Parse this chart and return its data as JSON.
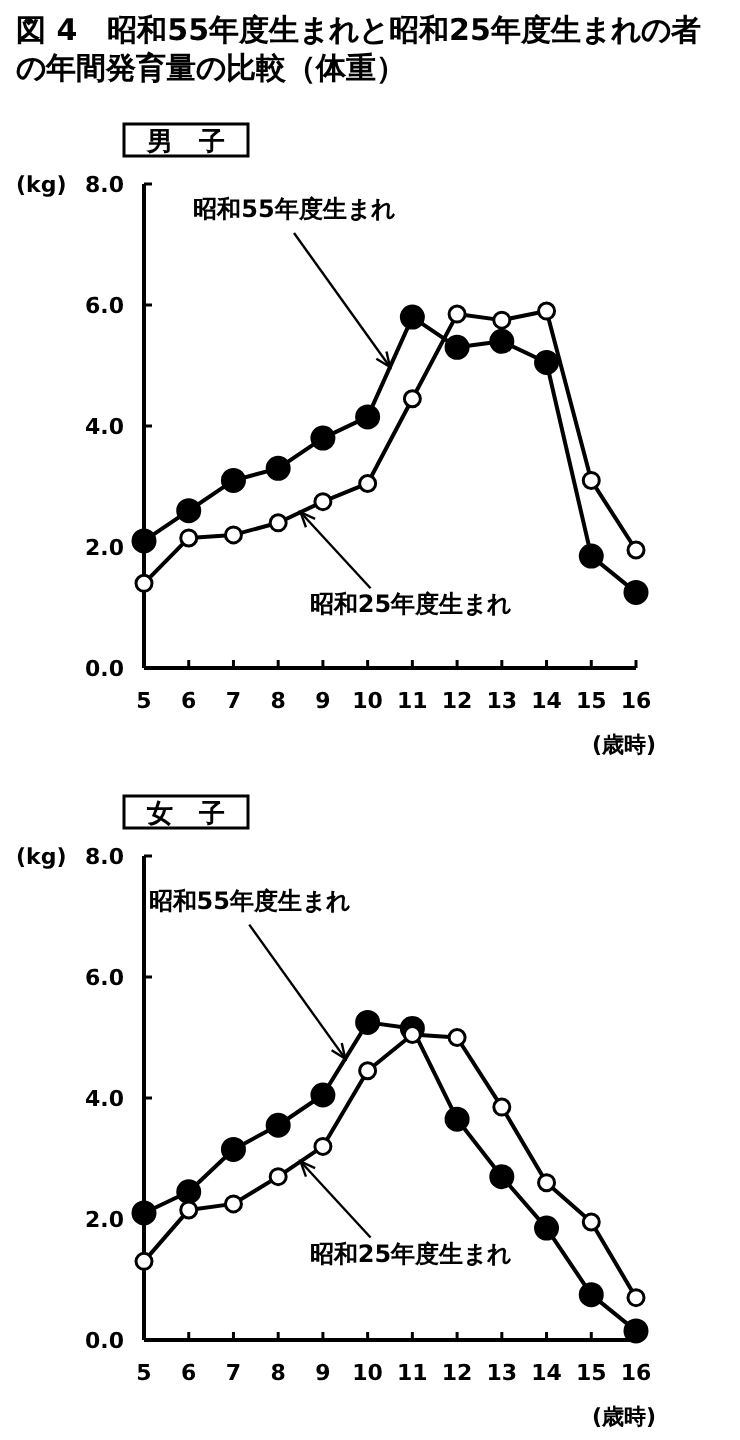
{
  "chart_data": [
    {
      "type": "line",
      "title": "図 4　昭和55年度生まれと昭和25年度生まれの者の年間発育量の比較（体重）",
      "subtitle": "男　子",
      "ylabel": "(kg)",
      "xlabel": "(歳時)",
      "x": [
        5,
        6,
        7,
        8,
        9,
        10,
        11,
        12,
        13,
        14,
        15,
        16
      ],
      "xlim": [
        5,
        16
      ],
      "xticks": [
        5,
        6,
        7,
        8,
        9,
        10,
        11,
        12,
        13,
        14,
        15,
        16
      ],
      "ylim": [
        0,
        8
      ],
      "yticks": [
        {
          "value": 0,
          "label": "0.0"
        },
        {
          "value": 2,
          "label": "2.0"
        },
        {
          "value": 4,
          "label": "4.0"
        },
        {
          "value": 6,
          "label": "6.0"
        },
        {
          "value": 8,
          "label": "8.0"
        }
      ],
      "grid": false,
      "marker": "circle",
      "line_style": "solid",
      "series": [
        {
          "name": "昭和55年度生まれ",
          "color": "#000000",
          "values": [
            2.1,
            2.6,
            3.1,
            3.3,
            3.8,
            4.15,
            5.8,
            5.3,
            5.4,
            5.05,
            1.85,
            1.25
          ]
        },
        {
          "name": "昭和25年度生まれ",
          "color": "#000000",
          "values": [
            1.4,
            2.15,
            2.2,
            2.4,
            2.75,
            3.05,
            4.45,
            5.85,
            5.75,
            5.9,
            3.1,
            1.95
          ]
        }
      ]
    },
    {
      "type": "line",
      "subtitle": "女　子",
      "ylabel": "(kg)",
      "xlabel": "(歳時)",
      "x": [
        5,
        6,
        7,
        8,
        9,
        10,
        11,
        12,
        13,
        14,
        15,
        16
      ],
      "xlim": [
        5,
        16
      ],
      "xticks": [
        5,
        6,
        7,
        8,
        9,
        10,
        11,
        12,
        13,
        14,
        15,
        16
      ],
      "ylim": [
        0,
        8
      ],
      "yticks": [
        {
          "value": 0,
          "label": "0.0"
        },
        {
          "value": 2,
          "label": "2.0"
        },
        {
          "value": 4,
          "label": "4.0"
        },
        {
          "value": 6,
          "label": "6.0"
        },
        {
          "value": 8,
          "label": "8.0"
        }
      ],
      "grid": false,
      "marker": "circle",
      "line_style": "solid",
      "series": [
        {
          "name": "昭和55年度生まれ",
          "color": "#000000",
          "values": [
            2.1,
            2.45,
            3.15,
            3.55,
            4.05,
            5.25,
            5.15,
            3.65,
            2.7,
            1.85,
            0.75,
            0.15
          ]
        },
        {
          "name": "昭和25年度生まれ",
          "color": "#000000",
          "values": [
            1.3,
            2.15,
            2.25,
            2.7,
            3.2,
            4.45,
            5.05,
            5.0,
            3.85,
            2.6,
            1.95,
            0.7
          ]
        }
      ]
    }
  ]
}
